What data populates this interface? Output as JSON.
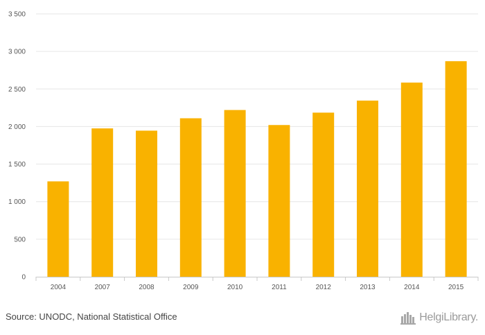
{
  "chart_data": {
    "type": "bar",
    "categories": [
      "2004",
      "2007",
      "2008",
      "2009",
      "2010",
      "2011",
      "2012",
      "2013",
      "2014",
      "2015"
    ],
    "values": [
      1270,
      1975,
      1945,
      2110,
      2220,
      2020,
      2185,
      2345,
      2585,
      2870
    ],
    "title": "",
    "xlabel": "",
    "ylabel": "",
    "ylim": [
      0,
      3500
    ],
    "yticks": [
      0,
      500,
      1000,
      1500,
      2000,
      2500,
      3000,
      3500
    ],
    "ytick_labels": [
      "0",
      "500",
      "1 000",
      "1 500",
      "2 000",
      "2 500",
      "3 000",
      "3 500"
    ],
    "grid": true,
    "bar_color": "#F9B200",
    "grid_color": "#e6e6e6"
  },
  "footer": {
    "source": "Source: UNODC, National Statistical Office",
    "brand": "HelgiLibrary.",
    "brand_icon": "helgi-library-logo-icon"
  }
}
